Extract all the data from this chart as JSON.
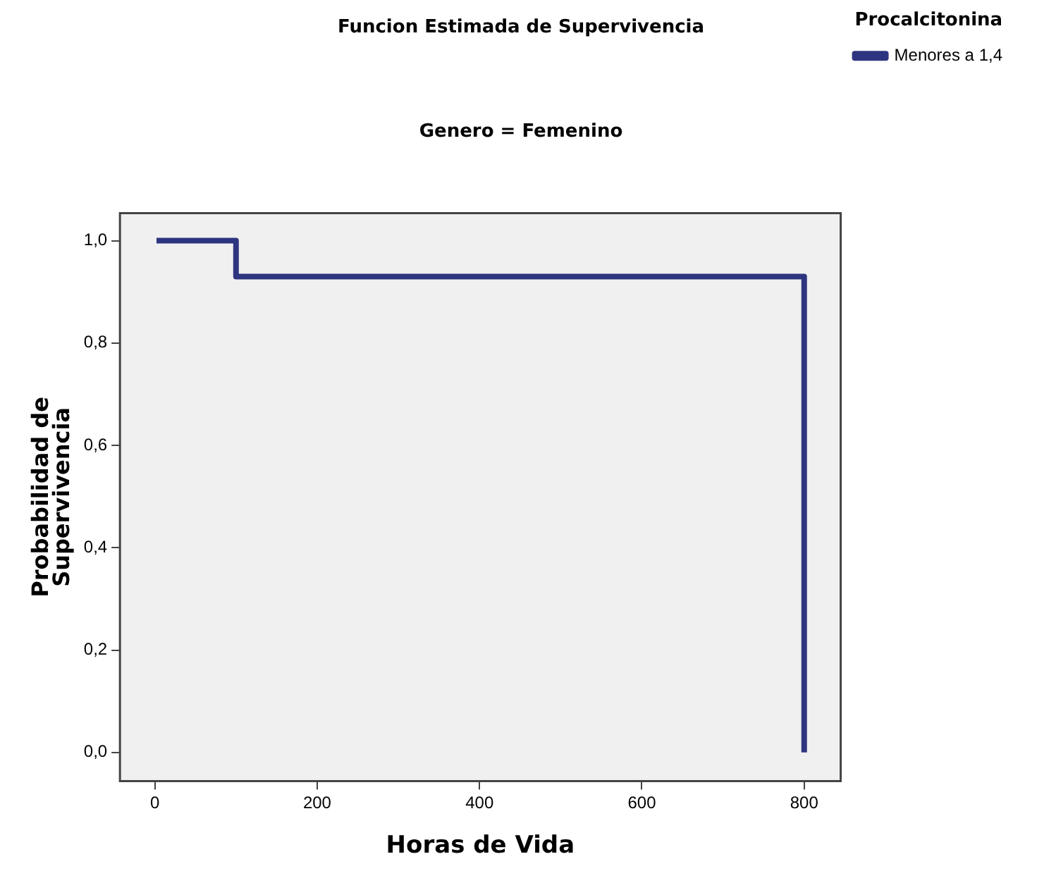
{
  "chart_data": {
    "type": "step",
    "title": "Funcion Estimada de Supervivencia",
    "subtitle": "Genero = Femenino",
    "xlabel": "Horas de Vida",
    "ylabel": "Probabilidad de\nSupervivencia",
    "legend_title": "Procalcitonina",
    "x": [
      2,
      100,
      800,
      800
    ],
    "series": [
      {
        "name": "Menores a 1,4",
        "color": "#2e3580",
        "values": [
          1,
          0.93,
          0.93,
          0
        ]
      }
    ],
    "xlim": [
      -43,
      845
    ],
    "ylim": [
      -0.056,
      1.054
    ],
    "xticks": [
      0,
      200,
      400,
      600,
      800
    ],
    "yticks": [
      {
        "value": 0,
        "label": "0,0"
      },
      {
        "value": 0.2,
        "label": "0,2"
      },
      {
        "value": 0.4,
        "label": "0,4"
      },
      {
        "value": 0.6,
        "label": "0,6"
      },
      {
        "value": 0.8,
        "label": "0,8"
      },
      {
        "value": 1,
        "label": "1,0"
      }
    ],
    "grid": false,
    "legend": "right",
    "marker": "none",
    "line_style": "solid"
  }
}
